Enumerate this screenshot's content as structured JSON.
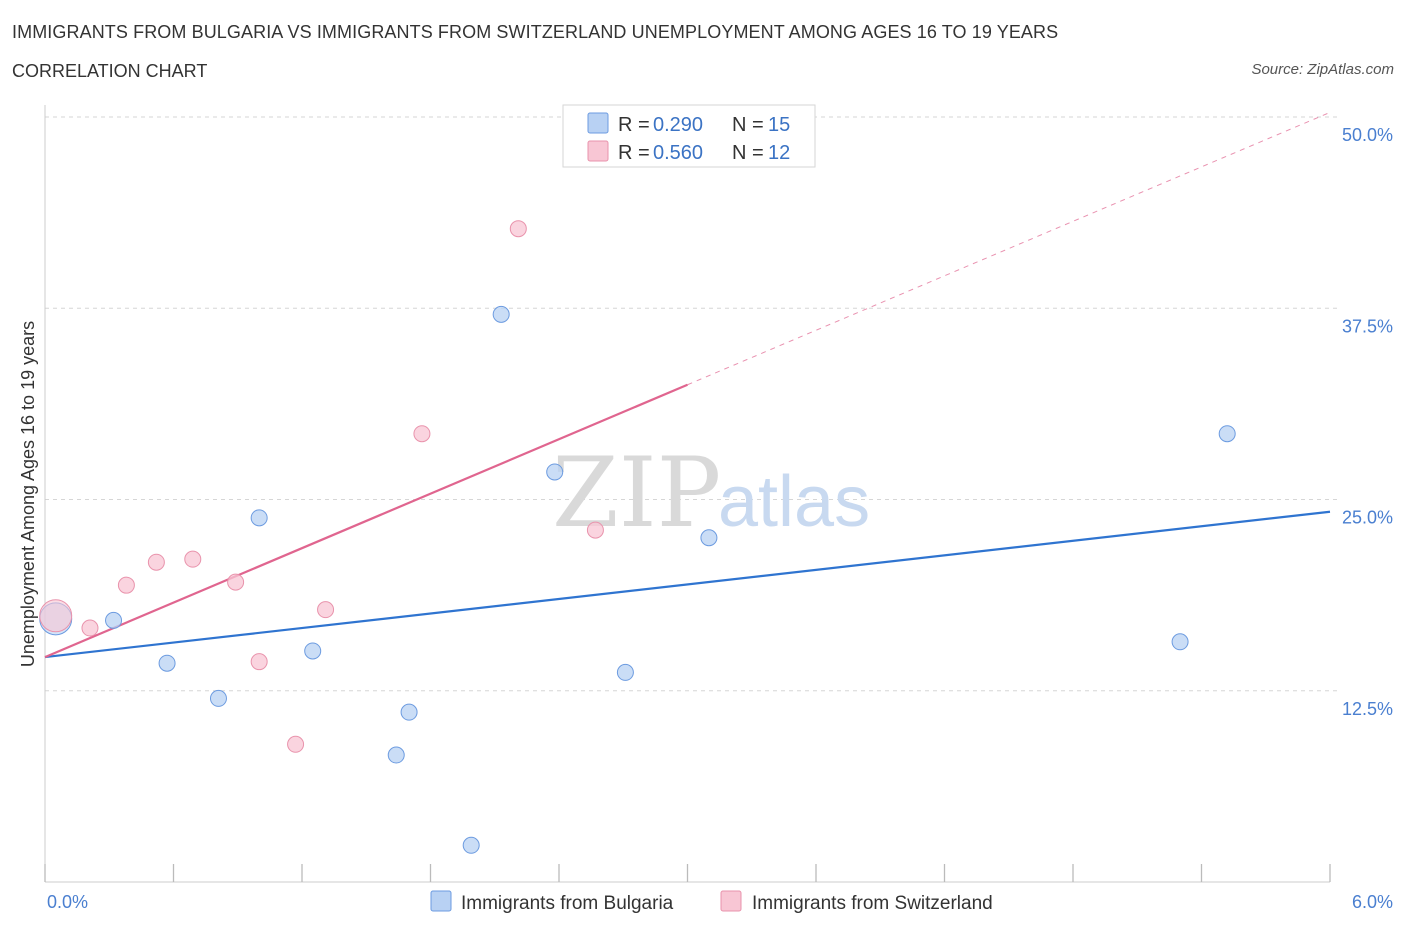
{
  "header": {
    "title": "IMMIGRANTS FROM BULGARIA VS IMMIGRANTS FROM SWITZERLAND UNEMPLOYMENT AMONG AGES 16 TO 19 YEARS",
    "subtitle": "CORRELATION CHART",
    "source": "Source: ZipAtlas.com"
  },
  "watermark": {
    "zip": "ZIP",
    "atlas": "atlas"
  },
  "colors": {
    "bulgaria_fill": "#b8d1f3",
    "bulgaria_stroke": "#6c9be0",
    "bulgaria_line": "#2f74d0",
    "switzerland_fill": "#f8c6d4",
    "switzerland_stroke": "#e993ac",
    "switzerland_line": "#e0658f",
    "grid": "#d6d6d6",
    "axis_label": "#4a7fd0"
  },
  "legend": {
    "entries": [
      {
        "r_label": "R = ",
        "r_value": "0.290",
        "n_label": "N = ",
        "n_value": "15"
      },
      {
        "r_label": "R = ",
        "r_value": "0.560",
        "n_label": "N = ",
        "n_value": "12"
      }
    ]
  },
  "chart_data": {
    "type": "scatter",
    "title": "IMMIGRANTS FROM BULGARIA VS IMMIGRANTS FROM SWITZERLAND UNEMPLOYMENT AMONG AGES 16 TO 19 YEARS",
    "xlabel": "",
    "ylabel": "Unemployment Among Ages 16 to 19 years",
    "xlim": [
      0,
      6
    ],
    "ylim": [
      0,
      50
    ],
    "x_tick_labels": [
      "0.0%",
      "6.0%"
    ],
    "y_ticks": [
      12.5,
      25.0,
      37.5,
      50.0
    ],
    "y_tick_labels": [
      "12.5%",
      "25.0%",
      "37.5%",
      "50.0%"
    ],
    "grid": true,
    "legend_position": "top-center",
    "series": [
      {
        "name": "Immigrants from Bulgaria",
        "R": 0.29,
        "N": 15,
        "points": [
          [
            0.05,
            17.2,
            "large"
          ],
          [
            0.32,
            17.1
          ],
          [
            0.57,
            14.3
          ],
          [
            0.81,
            12.0
          ],
          [
            1.0,
            23.8
          ],
          [
            1.25,
            15.1
          ],
          [
            1.64,
            8.3
          ],
          [
            1.7,
            11.1
          ],
          [
            1.99,
            2.4
          ],
          [
            2.13,
            37.1
          ],
          [
            2.38,
            26.8
          ],
          [
            2.71,
            13.7
          ],
          [
            3.1,
            22.5
          ],
          [
            5.3,
            15.7
          ],
          [
            5.52,
            29.3
          ]
        ],
        "trend": {
          "x0": 0,
          "y0": 14.7,
          "x1": 6,
          "y1": 24.2,
          "style": "solid"
        }
      },
      {
        "name": "Immigrants from Switzerland",
        "R": 0.56,
        "N": 12,
        "points": [
          [
            0.05,
            17.4,
            "large"
          ],
          [
            0.21,
            16.6
          ],
          [
            0.38,
            19.4
          ],
          [
            0.52,
            20.9
          ],
          [
            0.69,
            21.1
          ],
          [
            0.89,
            19.6
          ],
          [
            1.0,
            14.4
          ],
          [
            1.17,
            9.0
          ],
          [
            1.31,
            17.8
          ],
          [
            1.76,
            29.3
          ],
          [
            2.21,
            42.7
          ],
          [
            2.57,
            23.0
          ]
        ],
        "trend": {
          "x0": 0,
          "y0": 14.7,
          "x1": 3.0,
          "y1": 32.5,
          "dash_to_x": 6,
          "dash_to_y": 50.3,
          "style": "solid-then-dashed"
        }
      }
    ]
  }
}
